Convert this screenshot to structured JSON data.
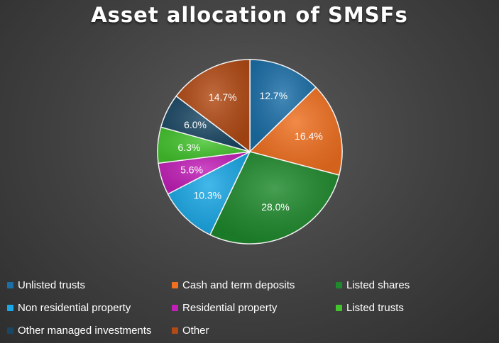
{
  "chart_data": {
    "type": "pie",
    "title": "Asset allocation of SMSFs",
    "slices": [
      {
        "label": "Unlisted trusts",
        "value": 12.7,
        "display": "12.7%",
        "color": "#1b6fa8"
      },
      {
        "label": "Cash and term deposits",
        "value": 16.4,
        "display": "16.4%",
        "color": "#f07020"
      },
      {
        "label": "Listed shares",
        "value": 28.0,
        "display": "28.0%",
        "color": "#1e8a2c"
      },
      {
        "label": "Non residential property",
        "value": 10.3,
        "display": "10.3%",
        "color": "#1aa8e6"
      },
      {
        "label": "Residential property",
        "value": 5.6,
        "display": "5.6%",
        "color": "#c21fb8"
      },
      {
        "label": "Listed trusts",
        "value": 6.3,
        "display": "6.3%",
        "color": "#44c42e"
      },
      {
        "label": "Other managed investments",
        "value": 6.0,
        "display": "6.0%",
        "color": "#1a4864"
      },
      {
        "label": "Other",
        "value": 14.7,
        "display": "14.7%",
        "color": "#b24a14"
      }
    ],
    "legend_position": "bottom"
  }
}
